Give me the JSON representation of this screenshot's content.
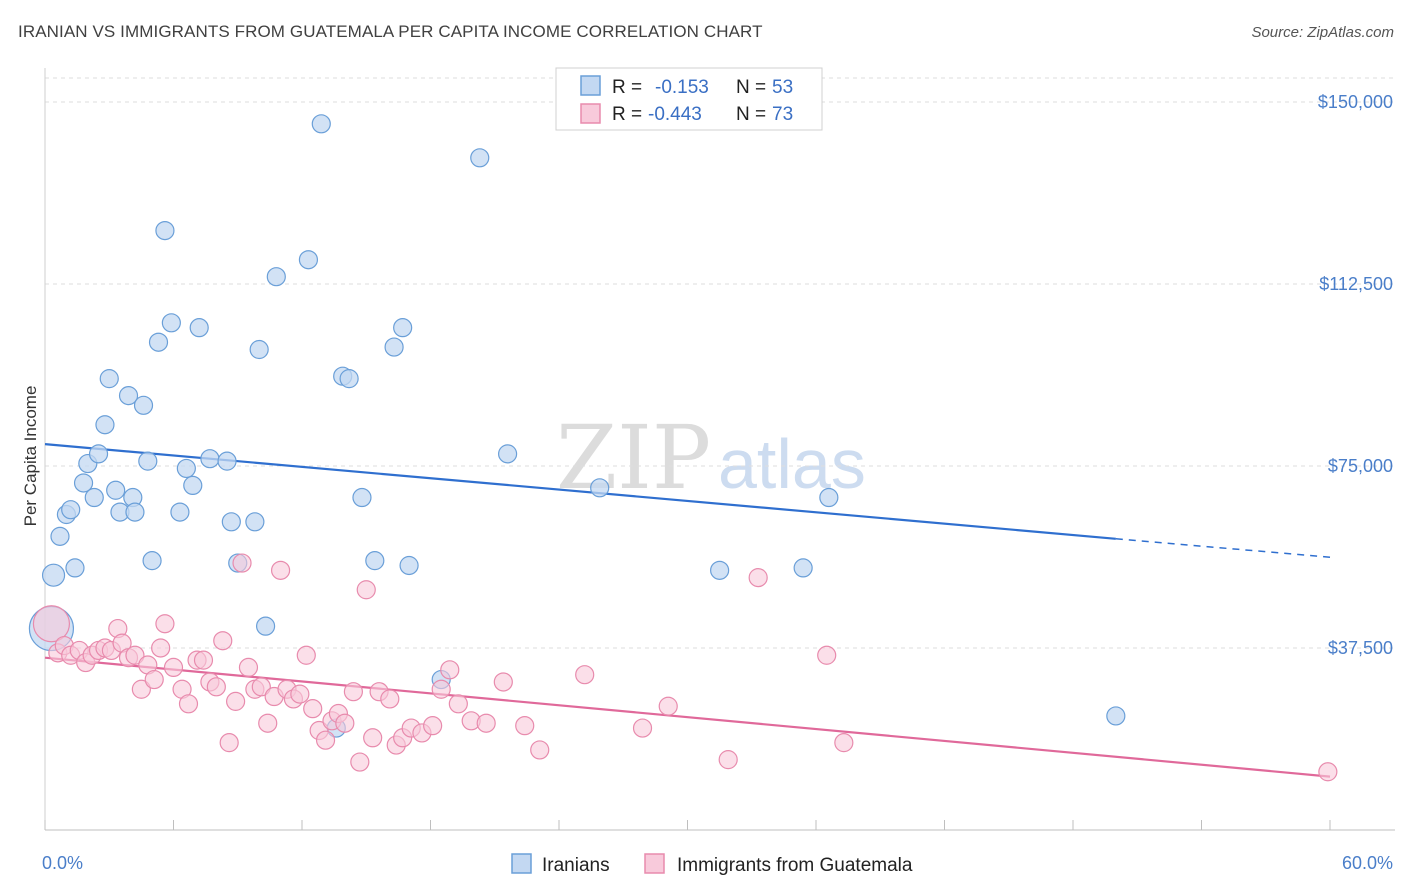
{
  "title": "IRANIAN VS IMMIGRANTS FROM GUATEMALA PER CAPITA INCOME CORRELATION CHART",
  "source": "Source: ZipAtlas.com",
  "watermark": {
    "zip": "ZIP",
    "atlas": "atlas"
  },
  "colors": {
    "blue": "#6a9fd8",
    "blue_fill": "#c3d8f2",
    "blue_line": "#2f6fcf",
    "pink": "#e88bad",
    "pink_fill": "#f8cadb",
    "pink_line": "#e0699a"
  },
  "legend": {
    "rows": [
      {
        "r_label": "R =",
        "r_value": "-0.153",
        "n_label": "N =",
        "n_value": "53"
      },
      {
        "r_label": "R =",
        "r_value": "-0.443",
        "n_label": "N =",
        "n_value": "73"
      }
    ]
  },
  "chart_data": {
    "type": "scatter",
    "ylabel": "Per Capita Income",
    "xlim": [
      0,
      60
    ],
    "ylim": [
      0,
      157000
    ],
    "x_tick_labels": [
      "0.0%",
      "60.0%"
    ],
    "y_ticks": [
      {
        "value": 37500,
        "label": "$37,500"
      },
      {
        "value": 75000,
        "label": "$75,000"
      },
      {
        "value": 112500,
        "label": "$112,500"
      },
      {
        "value": 150000,
        "label": "$150,000"
      }
    ],
    "series": [
      {
        "name": "Iranians",
        "trend": {
          "x0": 0,
          "y0": 79500,
          "x1": 50,
          "y1": 60000,
          "dash_x1": 60,
          "dash_y1": 56200
        },
        "points": [
          [
            0.3,
            41500,
            22
          ],
          [
            0.4,
            52500,
            11
          ],
          [
            0.7,
            60500,
            9
          ],
          [
            1.0,
            65000,
            9
          ],
          [
            1.2,
            66000,
            9
          ],
          [
            1.4,
            54000,
            9
          ],
          [
            1.8,
            71500,
            9
          ],
          [
            2.0,
            75500,
            9
          ],
          [
            2.3,
            68500,
            9
          ],
          [
            2.5,
            77500,
            9
          ],
          [
            2.8,
            83500,
            9
          ],
          [
            3.0,
            93000,
            9
          ],
          [
            3.3,
            70000,
            9
          ],
          [
            3.5,
            65500,
            9
          ],
          [
            3.9,
            89500,
            9
          ],
          [
            4.1,
            68500,
            9
          ],
          [
            4.2,
            65500,
            9
          ],
          [
            4.6,
            87500,
            9
          ],
          [
            4.8,
            76000,
            9
          ],
          [
            5.0,
            55500,
            9
          ],
          [
            5.3,
            100500,
            9
          ],
          [
            5.6,
            123500,
            9
          ],
          [
            5.9,
            104500,
            9
          ],
          [
            6.3,
            65500,
            9
          ],
          [
            6.6,
            74500,
            9
          ],
          [
            6.9,
            71000,
            9
          ],
          [
            7.2,
            103500,
            9
          ],
          [
            7.7,
            76500,
            9
          ],
          [
            8.5,
            76000,
            9
          ],
          [
            8.7,
            63500,
            9
          ],
          [
            9.0,
            55000,
            9
          ],
          [
            9.8,
            63500,
            9
          ],
          [
            10.0,
            99000,
            9
          ],
          [
            10.3,
            42000,
            9
          ],
          [
            10.8,
            114000,
            9
          ],
          [
            12.3,
            117500,
            9
          ],
          [
            12.9,
            145500,
            9
          ],
          [
            13.6,
            21000,
            9
          ],
          [
            13.9,
            93500,
            9
          ],
          [
            14.2,
            93000,
            9
          ],
          [
            14.8,
            68500,
            9
          ],
          [
            15.4,
            55500,
            9
          ],
          [
            16.3,
            99500,
            9
          ],
          [
            16.7,
            103500,
            9
          ],
          [
            17.0,
            54500,
            9
          ],
          [
            18.5,
            31000,
            9
          ],
          [
            20.3,
            138500,
            9
          ],
          [
            21.6,
            77500,
            9
          ],
          [
            25.9,
            70500,
            9
          ],
          [
            31.5,
            53500,
            9
          ],
          [
            35.4,
            54000,
            9
          ],
          [
            36.6,
            68500,
            9
          ],
          [
            50.0,
            23500,
            9
          ]
        ]
      },
      {
        "name": "Immigrants from Guatemala",
        "trend": {
          "x0": 0,
          "y0": 35500,
          "x1": 60,
          "y1": 11000
        },
        "points": [
          [
            0.3,
            42500,
            18
          ],
          [
            0.6,
            36500,
            9
          ],
          [
            0.9,
            38000,
            9
          ],
          [
            1.2,
            36000,
            9
          ],
          [
            1.6,
            37000,
            9
          ],
          [
            1.9,
            34500,
            9
          ],
          [
            2.2,
            36000,
            9
          ],
          [
            2.5,
            37000,
            9
          ],
          [
            2.8,
            37500,
            9
          ],
          [
            3.1,
            37000,
            9
          ],
          [
            3.4,
            41500,
            9
          ],
          [
            3.6,
            38500,
            9
          ],
          [
            3.9,
            35500,
            9
          ],
          [
            4.2,
            36000,
            9
          ],
          [
            4.5,
            29000,
            9
          ],
          [
            4.8,
            34000,
            9
          ],
          [
            5.1,
            31000,
            9
          ],
          [
            5.4,
            37500,
            9
          ],
          [
            5.6,
            42500,
            9
          ],
          [
            6.0,
            33500,
            9
          ],
          [
            6.4,
            29000,
            9
          ],
          [
            6.7,
            26000,
            9
          ],
          [
            7.1,
            35000,
            9
          ],
          [
            7.4,
            35000,
            9
          ],
          [
            7.7,
            30500,
            9
          ],
          [
            8.0,
            29500,
            9
          ],
          [
            8.3,
            39000,
            9
          ],
          [
            8.6,
            18000,
            9
          ],
          [
            8.9,
            26500,
            9
          ],
          [
            9.2,
            55000,
            9
          ],
          [
            9.5,
            33500,
            9
          ],
          [
            9.8,
            29000,
            9
          ],
          [
            10.1,
            29500,
            9
          ],
          [
            10.4,
            22000,
            9
          ],
          [
            10.7,
            27500,
            9
          ],
          [
            11.0,
            53500,
            9
          ],
          [
            11.3,
            29000,
            9
          ],
          [
            11.6,
            27000,
            9
          ],
          [
            11.9,
            28000,
            9
          ],
          [
            12.2,
            36000,
            9
          ],
          [
            12.5,
            25000,
            9
          ],
          [
            12.8,
            20500,
            9
          ],
          [
            13.1,
            18500,
            9
          ],
          [
            13.4,
            22500,
            9
          ],
          [
            13.7,
            24000,
            9
          ],
          [
            14.0,
            22000,
            9
          ],
          [
            14.4,
            28500,
            9
          ],
          [
            14.7,
            14000,
            9
          ],
          [
            15.0,
            49500,
            9
          ],
          [
            15.3,
            19000,
            9
          ],
          [
            15.6,
            28500,
            9
          ],
          [
            16.1,
            27000,
            9
          ],
          [
            16.4,
            17500,
            9
          ],
          [
            16.7,
            19000,
            9
          ],
          [
            17.1,
            21000,
            9
          ],
          [
            17.6,
            20000,
            9
          ],
          [
            18.1,
            21500,
            9
          ],
          [
            18.5,
            29000,
            9
          ],
          [
            18.9,
            33000,
            9
          ],
          [
            19.3,
            26000,
            9
          ],
          [
            19.9,
            22500,
            9
          ],
          [
            20.6,
            22000,
            9
          ],
          [
            21.4,
            30500,
            9
          ],
          [
            22.4,
            21500,
            9
          ],
          [
            23.1,
            16500,
            9
          ],
          [
            25.2,
            32000,
            9
          ],
          [
            27.9,
            21000,
            9
          ],
          [
            29.1,
            25500,
            9
          ],
          [
            31.9,
            14500,
            9
          ],
          [
            33.3,
            52000,
            9
          ],
          [
            36.5,
            36000,
            9
          ],
          [
            37.3,
            18000,
            9
          ],
          [
            59.9,
            12000,
            9
          ]
        ]
      }
    ]
  }
}
